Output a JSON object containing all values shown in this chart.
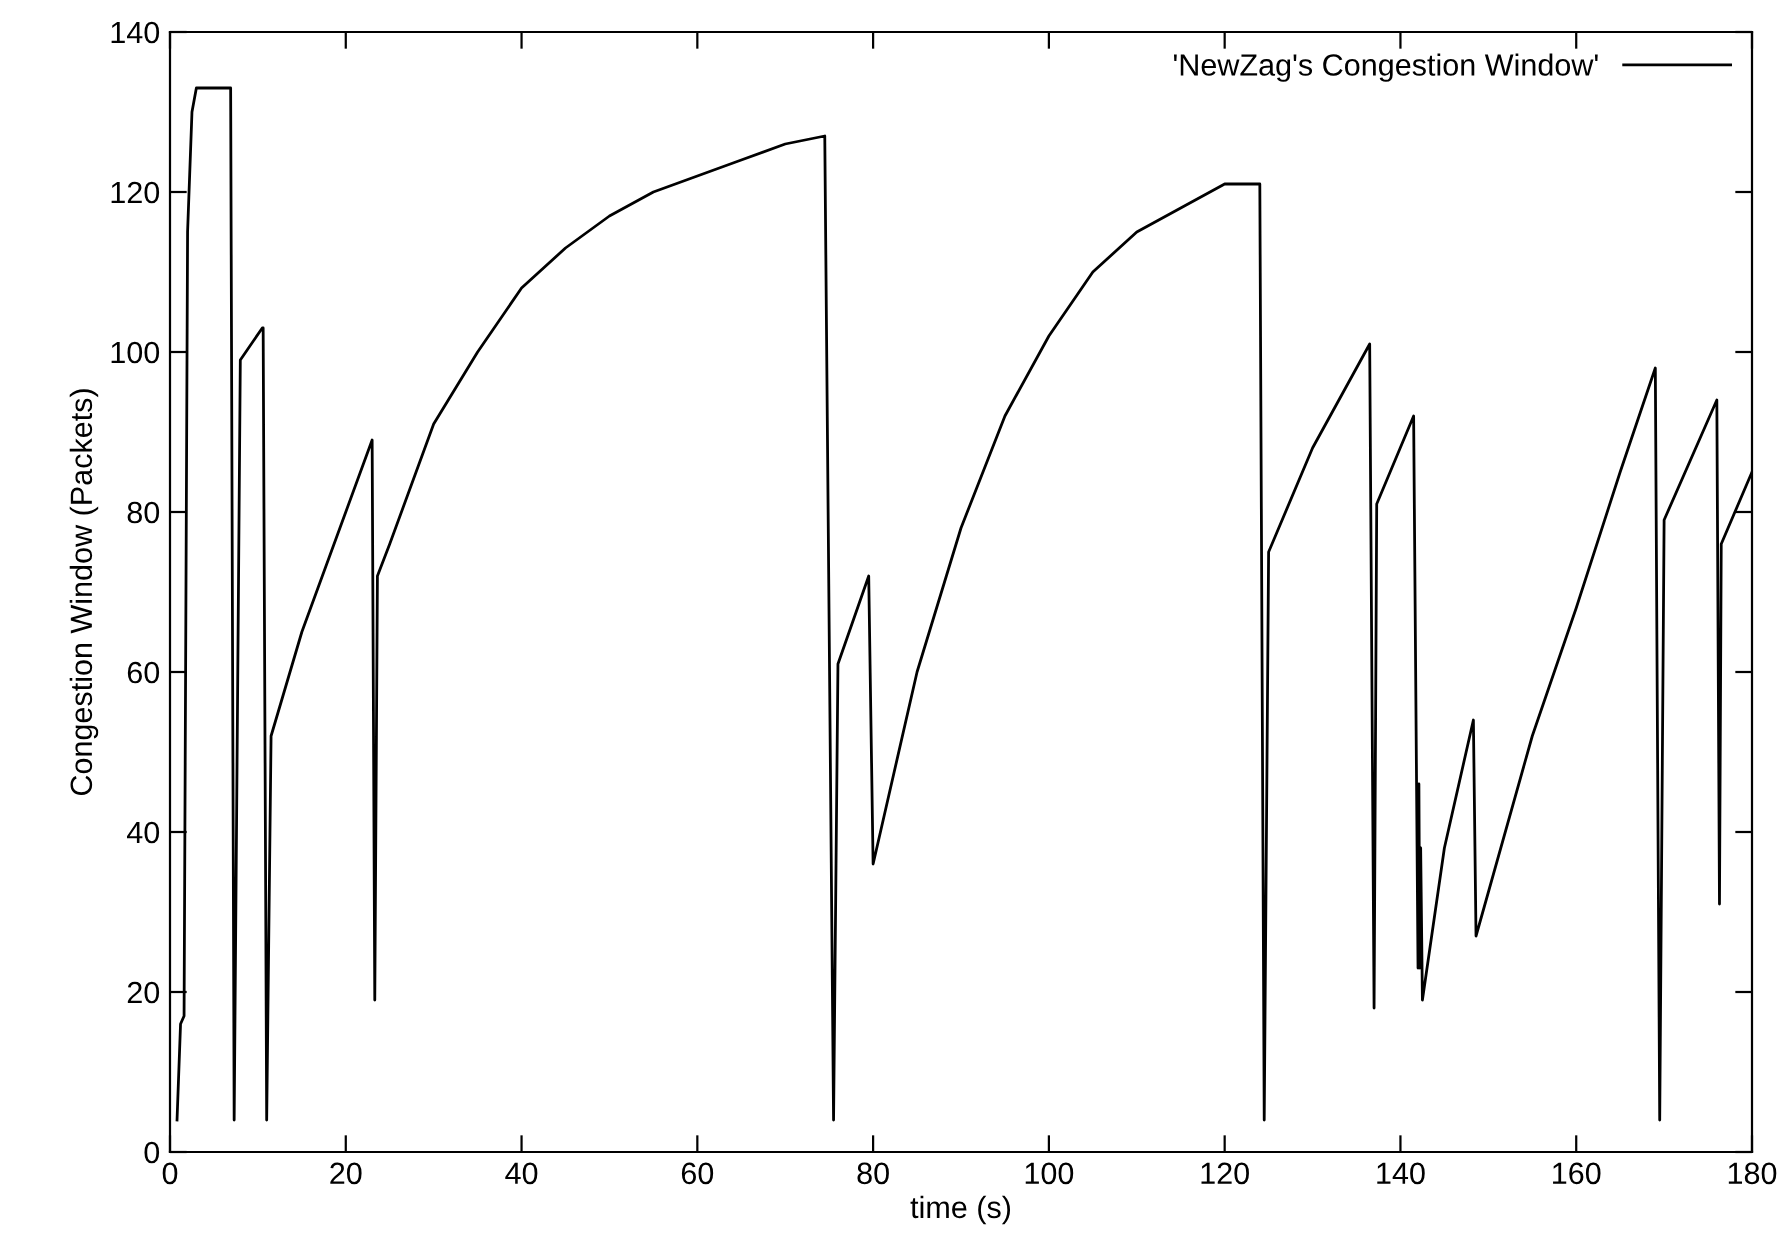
{
  "chart_data": {
    "type": "line",
    "xlabel": "time (s)",
    "ylabel": "Congestion Window (Packets)",
    "xlim": [
      0,
      180
    ],
    "ylim": [
      0,
      140
    ],
    "xticks": [
      0,
      20,
      40,
      60,
      80,
      100,
      120,
      140,
      160,
      180
    ],
    "yticks": [
      0,
      20,
      40,
      60,
      80,
      100,
      120,
      140
    ],
    "grid": false,
    "legend": "top right",
    "marker": "none",
    "line_style": "solid",
    "series": [
      {
        "name": "'NewZag's Congestion Window'",
        "color": "#000000",
        "x": [
          0.8,
          1.2,
          1.6,
          2,
          2.5,
          3,
          6.9,
          7.3,
          8,
          10.5,
          10.6,
          11,
          11.5,
          15,
          20,
          23,
          23.3,
          23.6,
          25,
          30,
          35,
          40,
          45,
          50,
          55,
          60,
          65,
          70,
          74.5,
          75.5,
          76,
          79.5,
          80,
          85,
          90,
          95,
          100,
          105,
          110,
          115,
          120,
          124,
          124.5,
          125,
          130,
          136.5,
          137,
          137.3,
          141.5,
          142,
          142.1,
          142.2,
          142.3,
          142.5,
          145,
          148.3,
          148.6,
          155,
          160,
          165,
          169,
          169.5,
          170,
          176,
          176.3,
          176.5,
          180
        ],
        "values": [
          4,
          16,
          17,
          115,
          130,
          133,
          133,
          4,
          99,
          103,
          103,
          4,
          52,
          65,
          80,
          89,
          19,
          72,
          76,
          91,
          100,
          108,
          113,
          117,
          120,
          122,
          124,
          126,
          127,
          4,
          61,
          72,
          36,
          60,
          78,
          92,
          102,
          110,
          115,
          118,
          121,
          121,
          4,
          75,
          88,
          101,
          18,
          81,
          92,
          23,
          46,
          23,
          38,
          19,
          38,
          54,
          27,
          52,
          68,
          85,
          98,
          4,
          79,
          94,
          31,
          76,
          85
        ]
      }
    ]
  }
}
